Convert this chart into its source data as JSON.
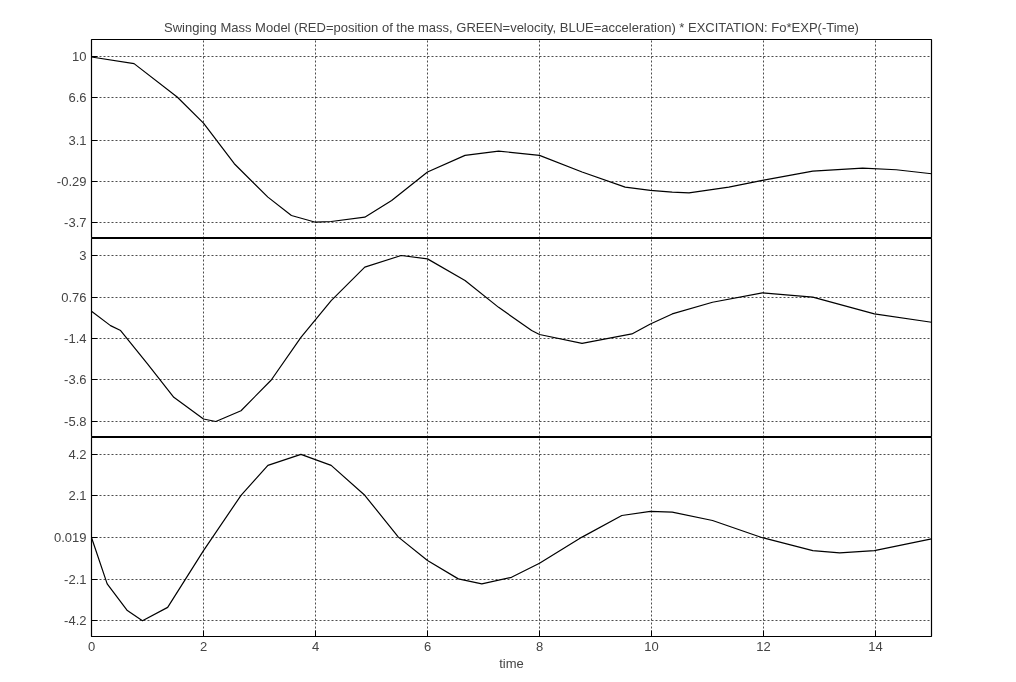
{
  "chart_data": [
    {
      "type": "line",
      "title": "Swinging Mass Model (RED=position of the mass, GREEN=velocity, BLUE=acceleration) * EXCITATION: Fo*EXP(-Time)",
      "xlim": [
        0,
        15
      ],
      "xticks": [
        0,
        2,
        4,
        6,
        8,
        10,
        12,
        14
      ],
      "ylim": [
        -5.05,
        11.45
      ],
      "yticks": [
        10,
        6.6,
        3.1,
        -0.29,
        -3.7
      ],
      "grid": true,
      "tick_labels": "y",
      "series": [
        {
          "color": "#000000",
          "x": [
            0,
            0.76,
            1.53,
            2,
            2.55,
            3.15,
            3.57,
            4.0,
            4.28,
            4.88,
            5.36,
            6.0,
            6.67,
            7.27,
            8.0,
            8.76,
            9.53,
            9.98,
            10.37,
            10.67,
            11.38,
            11.98,
            12.88,
            13.77,
            14.37,
            15
          ],
          "values": [
            10,
            9.45,
            6.68,
            4.52,
            1.15,
            -1.62,
            -3.14,
            -3.7,
            -3.64,
            -3.28,
            -1.9,
            0.46,
            1.84,
            2.2,
            1.84,
            0.46,
            -0.79,
            -1.06,
            -1.2,
            -1.26,
            -0.79,
            -0.23,
            0.54,
            0.79,
            0.65,
            0.32
          ]
        }
      ]
    },
    {
      "type": "line",
      "xlim": [
        0,
        15
      ],
      "xticks": [
        0,
        2,
        4,
        6,
        8,
        10,
        12,
        14
      ],
      "ylim": [
        -6.65,
        3.9
      ],
      "yticks": [
        3,
        0.76,
        -1.4,
        -3.6,
        -5.8
      ],
      "grid": true,
      "tick_labels": "y",
      "series": [
        {
          "color": "#000000",
          "x": [
            0,
            0.34,
            0.52,
            1.0,
            1.47,
            2.0,
            2.22,
            2.67,
            3.21,
            3.74,
            4.28,
            4.88,
            5.53,
            6.0,
            6.67,
            7.27,
            7.86,
            8.0,
            8.76,
            9.65,
            9.98,
            10.37,
            11.09,
            11.98,
            12.88,
            13.98,
            15
          ],
          "values": [
            0.04,
            -0.72,
            -0.98,
            -2.75,
            -4.52,
            -5.67,
            -5.8,
            -5.23,
            -3.6,
            -1.34,
            0.61,
            2.38,
            3.0,
            2.82,
            1.67,
            0.25,
            -0.98,
            -1.19,
            -1.66,
            -1.16,
            -0.63,
            -0.1,
            0.52,
            1.02,
            0.79,
            -0.1,
            -0.54
          ]
        }
      ]
    },
    {
      "type": "line",
      "xlabel": "time",
      "xlim": [
        0,
        15
      ],
      "xticks": [
        0,
        2,
        4,
        6,
        8,
        10,
        12,
        14
      ],
      "ylim": [
        -5.0,
        5.05
      ],
      "yticks": [
        4.2,
        2.1,
        0.019,
        -2.1,
        -4.2
      ],
      "grid": true,
      "series": [
        {
          "color": "#000000",
          "x": [
            0,
            0.28,
            0.64,
            0.91,
            1.36,
            2.0,
            2.67,
            3.15,
            3.74,
            4.28,
            4.88,
            5.48,
            6.0,
            6.55,
            6.97,
            7.5,
            8.0,
            8.76,
            9.47,
            9.98,
            10.37,
            11.09,
            11.98,
            12.88,
            13.36,
            13.98,
            15
          ],
          "values": [
            0.0,
            -2.34,
            -3.69,
            -4.2,
            -3.53,
            -0.66,
            2.13,
            3.64,
            4.2,
            3.64,
            2.13,
            0.02,
            -1.16,
            -2.09,
            -2.34,
            -2.01,
            -1.3,
            0.02,
            1.11,
            1.32,
            1.28,
            0.86,
            -0.01,
            -0.66,
            -0.78,
            -0.66,
            -0.07
          ]
        }
      ]
    }
  ]
}
